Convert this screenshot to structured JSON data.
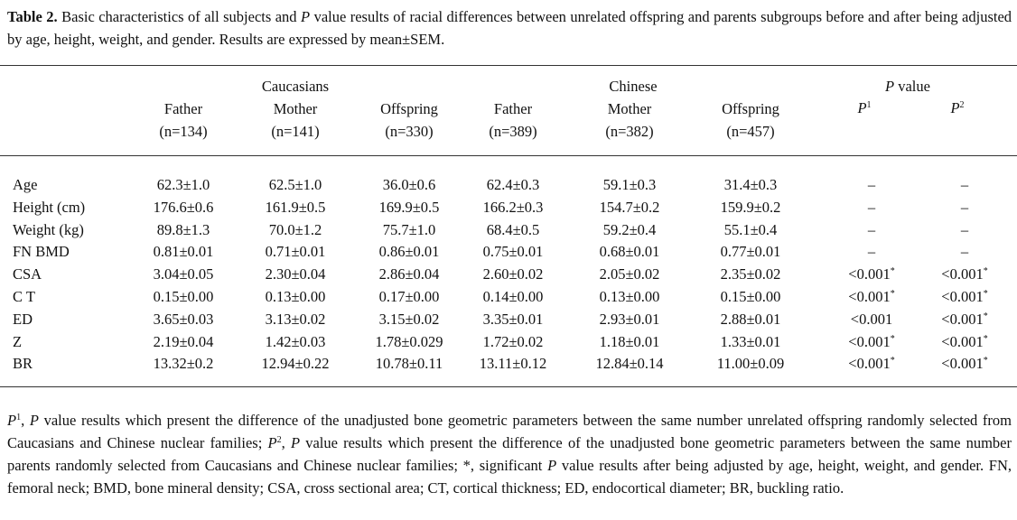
{
  "caption": {
    "label": "Table 2.",
    "text_1": "Basic characteristics of all subjects and",
    "p": "P",
    "text_2": "value results of racial differences between unrelated offspring and parents subgroups before and after being adjusted by age, height, weight, and gender. Results are expressed by mean±SEM."
  },
  "header": {
    "groups": [
      "Caucasians",
      "Chinese"
    ],
    "p_group": {
      "italic": "P",
      "text": "value"
    },
    "columns": [
      {
        "name": "Father",
        "n": "(n=134)"
      },
      {
        "name": "Mother",
        "n": "(n=141)"
      },
      {
        "name": "Offspring",
        "n": "(n=330)"
      },
      {
        "name": "Father",
        "n": "(n=389)"
      },
      {
        "name": "Mother",
        "n": "(n=382)"
      },
      {
        "name": "Offspring",
        "n": "(n=457)"
      }
    ],
    "p_columns": [
      {
        "italic": "P",
        "sup": "1"
      },
      {
        "italic": "P",
        "sup": "2"
      }
    ]
  },
  "table": {
    "rows": [
      {
        "label": "Age",
        "cells": [
          "62.3±1.0",
          "62.5±1.0",
          "36.0±0.6",
          "62.4±0.3",
          "59.1±0.3",
          "31.4±0.3"
        ],
        "p": [
          {
            "value": "–"
          },
          {
            "value": "–"
          }
        ]
      },
      {
        "label": "Height (cm)",
        "cells": [
          "176.6±0.6",
          "161.9±0.5",
          "169.9±0.5",
          "166.2±0.3",
          "154.7±0.2",
          "159.9±0.2"
        ],
        "p": [
          {
            "value": "–"
          },
          {
            "value": "–"
          }
        ]
      },
      {
        "label": "Weight (kg)",
        "cells": [
          "89.8±1.3",
          "70.0±1.2",
          "75.7±1.0",
          "68.4±0.5",
          "59.2±0.4",
          "55.1±0.4"
        ],
        "p": [
          {
            "value": "–"
          },
          {
            "value": "–"
          }
        ]
      },
      {
        "label": "FN BMD",
        "cells": [
          "0.81±0.01",
          "0.71±0.01",
          "0.86±0.01",
          "0.75±0.01",
          "0.68±0.01",
          "0.77±0.01"
        ],
        "p": [
          {
            "value": "–"
          },
          {
            "value": "–"
          }
        ]
      },
      {
        "label": "CSA",
        "cells": [
          "3.04±0.05",
          "2.30±0.04",
          "2.86±0.04",
          "2.60±0.02",
          "2.05±0.02",
          "2.35±0.02"
        ],
        "p": [
          {
            "value": "<0.001",
            "sup": "*"
          },
          {
            "value": "<0.001",
            "sup": "*"
          }
        ]
      },
      {
        "label": "C T",
        "cells": [
          "0.15±0.00",
          "0.13±0.00",
          "0.17±0.00",
          "0.14±0.00",
          "0.13±0.00",
          "0.15±0.00"
        ],
        "p": [
          {
            "value": "<0.001",
            "sup": "*"
          },
          {
            "value": "<0.001",
            "sup": "*"
          }
        ]
      },
      {
        "label": "ED",
        "cells": [
          "3.65±0.03",
          "3.13±0.02",
          "3.15±0.02",
          "3.35±0.01",
          "2.93±0.01",
          "2.88±0.01"
        ],
        "p": [
          {
            "value": "<0.001"
          },
          {
            "value": "<0.001",
            "sup": "*"
          }
        ]
      },
      {
        "label": "Z",
        "cells": [
          "2.19±0.04",
          "1.42±0.03",
          "1.78±0.029",
          "1.72±0.02",
          "1.18±0.01",
          "1.33±0.01"
        ],
        "p": [
          {
            "value": "<0.001",
            "sup": "*"
          },
          {
            "value": "<0.001",
            "sup": "*"
          }
        ]
      },
      {
        "label": "BR",
        "cells": [
          "13.32±0.2",
          "12.94±0.22",
          "10.78±0.11",
          "13.11±0.12",
          "12.84±0.14",
          "11.00±0.09"
        ],
        "p": [
          {
            "value": "<0.001",
            "sup": "*"
          },
          {
            "value": "<0.001",
            "sup": "*"
          }
        ]
      }
    ]
  },
  "footnote": [
    "P",
    "1",
    ",",
    "P",
    "value results which present the difference of the unadjusted bone geometric parameters between the same number unrelated offspring randomly selected from Caucasians and Chinese nuclear families;",
    "P",
    "2",
    ",",
    "P",
    "value results which present the difference of the unadjusted bone geometric parameters between the same number parents randomly selected from Caucasians and Chinese nuclear families; *, significant",
    "P",
    "value results after being adjusted by age, height, weight, and gender. FN, femoral neck; BMD, bone mineral density; CSA, cross sectional area; CT, cortical thickness; ED, endocortical diameter; BR, buckling ratio."
  ]
}
